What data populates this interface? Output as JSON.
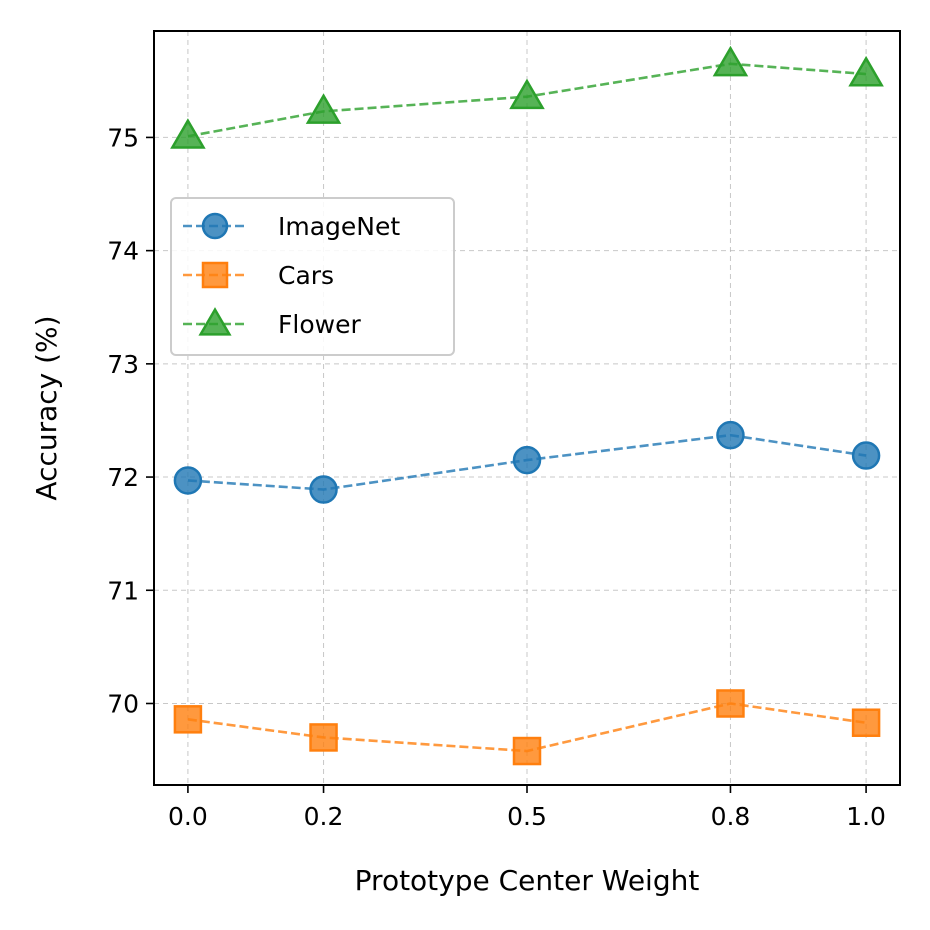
{
  "chart_data": {
    "type": "line",
    "title": "",
    "xlabel": "Prototype Center Weight",
    "ylabel": "Accuracy (%)",
    "x": [
      0.0,
      0.2,
      0.5,
      0.8,
      1.0
    ],
    "x_tick_labels": [
      "0.0",
      "0.2",
      "0.5",
      "0.8",
      "1.0"
    ],
    "y_ticks": [
      70,
      71,
      72,
      73,
      74,
      75
    ],
    "y_tick_labels": [
      "70",
      "71",
      "72",
      "73",
      "74",
      "75"
    ],
    "xlim": [
      -0.05,
      1.05
    ],
    "ylim": [
      69.28,
      75.94
    ],
    "grid": true,
    "legend_position": "upper-left",
    "series": [
      {
        "name": "ImageNet",
        "marker": "circle",
        "color": "#1f77b4",
        "values": [
          71.97,
          71.89,
          72.15,
          72.37,
          72.19
        ]
      },
      {
        "name": "Cars",
        "marker": "square",
        "color": "#ff7f0e",
        "values": [
          69.86,
          69.7,
          69.58,
          70.0,
          69.83
        ]
      },
      {
        "name": "Flower",
        "marker": "triangle",
        "color": "#2ca02c",
        "values": [
          75.01,
          75.23,
          75.36,
          75.65,
          75.56
        ]
      }
    ]
  }
}
